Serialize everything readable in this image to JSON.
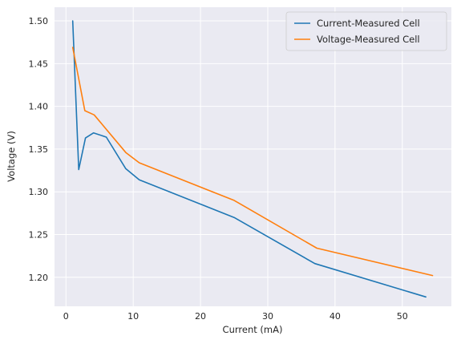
{
  "chart_data": {
    "type": "line",
    "title": "",
    "xlabel": "Current (mA)",
    "ylabel": "Voltage (V)",
    "xlim": [
      -1.7,
      57.3
    ],
    "ylim": [
      1.166,
      1.516
    ],
    "x_ticks": [
      0,
      10,
      20,
      30,
      40,
      50
    ],
    "y_ticks": [
      1.2,
      1.25,
      1.3,
      1.35,
      1.4,
      1.45,
      1.5
    ],
    "grid": true,
    "legend_position": "top-right",
    "series": [
      {
        "name": "Current-Measured Cell",
        "color": "#1f77b4",
        "x": [
          1.0,
          1.9,
          2.9,
          4.1,
          6.0,
          8.9,
          10.9,
          25.0,
          37.0,
          53.5
        ],
        "y": [
          1.5,
          1.326,
          1.363,
          1.369,
          1.364,
          1.327,
          1.314,
          1.27,
          1.216,
          1.177
        ]
      },
      {
        "name": "Voltage-Measured Cell",
        "color": "#ff7f0e",
        "x": [
          1.0,
          2.8,
          4.2,
          8.9,
          10.9,
          25.0,
          37.3,
          54.5
        ],
        "y": [
          1.469,
          1.395,
          1.39,
          1.346,
          1.334,
          1.29,
          1.234,
          1.202
        ]
      }
    ]
  }
}
